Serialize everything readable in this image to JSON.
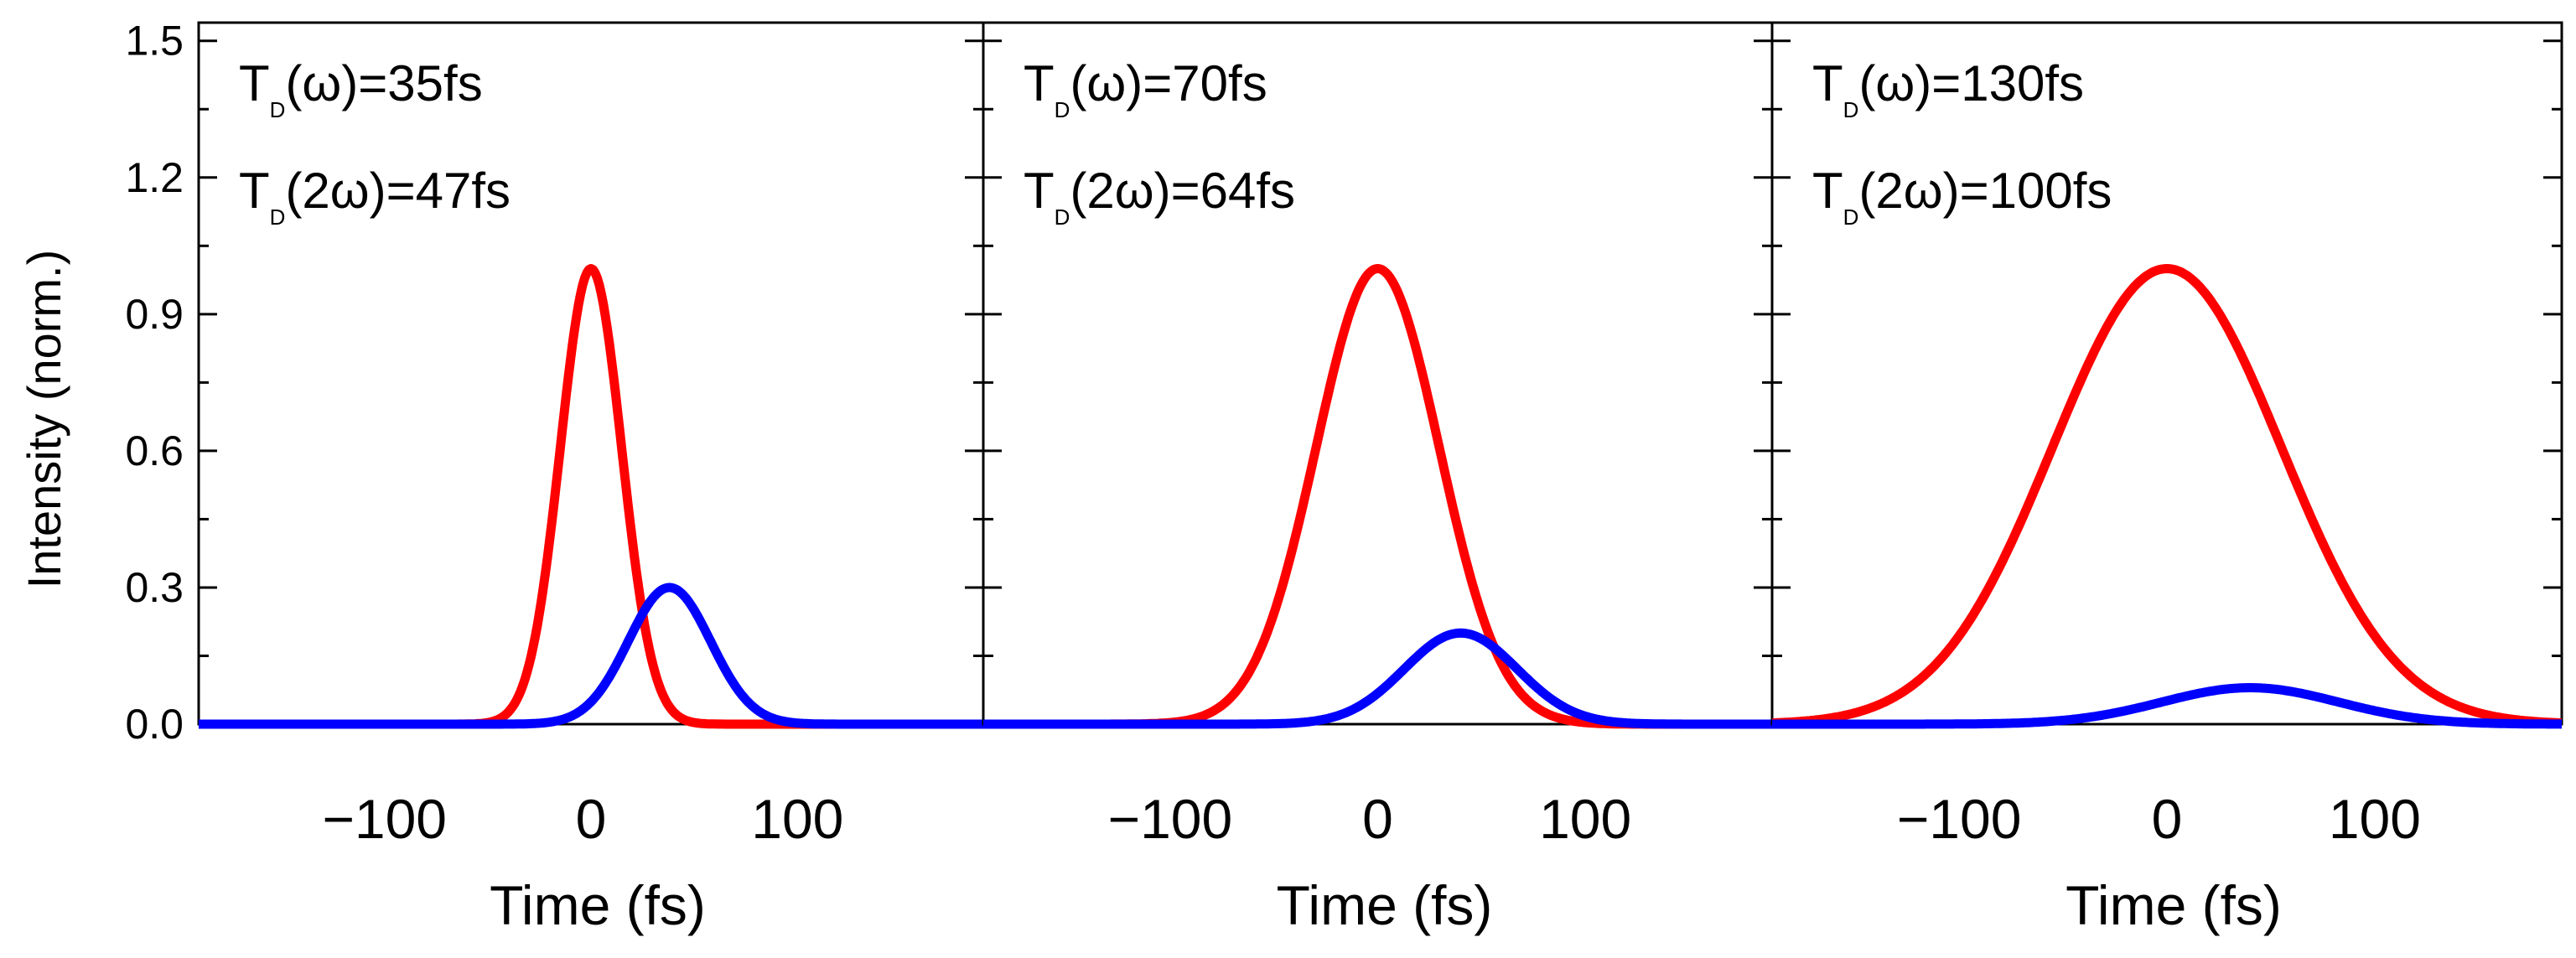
{
  "ylabel": "Intensity (norm.)",
  "colors": {
    "fundamental": "#ff0000",
    "second_harmonic": "#0000ff",
    "axes": "#000000"
  },
  "chart_data": [
    {
      "type": "line",
      "xlabel": "Time (fs)",
      "ylabel": "Intensity (norm.)",
      "xlim": [
        -190,
        190
      ],
      "ylim": [
        0,
        1.54
      ],
      "xticks": [
        -100,
        0,
        100
      ],
      "xtick_labels": [
        "−100",
        "0",
        "100"
      ],
      "yticks": [
        0.0,
        0.3,
        0.6,
        0.9,
        1.2,
        1.5
      ],
      "ytick_labels": [
        "0.0",
        "0.3",
        "0.6",
        "0.9",
        "1.2",
        "1.5"
      ],
      "annotations": [
        {
          "base": "T",
          "sub": "D",
          "rest": "(ω)=35fs"
        },
        {
          "base": "T",
          "sub": "D",
          "rest": "(2ω)=47fs"
        }
      ],
      "series": [
        {
          "name": "ω",
          "color": "#ff0000",
          "shape": "gaussian",
          "peak": 1.0,
          "center": 0,
          "fwhm": 35
        },
        {
          "name": "2ω",
          "color": "#0000ff",
          "shape": "gaussian",
          "peak": 0.3,
          "center": 38,
          "fwhm": 47
        }
      ]
    },
    {
      "type": "line",
      "xlabel": "Time (fs)",
      "xlim": [
        -190,
        190
      ],
      "ylim": [
        0,
        1.54
      ],
      "xticks": [
        -100,
        0,
        100
      ],
      "xtick_labels": [
        "−100",
        "0",
        "100"
      ],
      "yticks": [
        0.0,
        0.3,
        0.6,
        0.9,
        1.2,
        1.5
      ],
      "annotations": [
        {
          "base": "T",
          "sub": "D",
          "rest": "(ω)=70fs"
        },
        {
          "base": "T",
          "sub": "D",
          "rest": "(2ω)=64fs"
        }
      ],
      "series": [
        {
          "name": "ω",
          "color": "#ff0000",
          "shape": "gaussian",
          "peak": 1.0,
          "center": 0,
          "fwhm": 70
        },
        {
          "name": "2ω",
          "color": "#0000ff",
          "shape": "gaussian",
          "peak": 0.2,
          "center": 40,
          "fwhm": 64
        }
      ]
    },
    {
      "type": "line",
      "xlabel": "Time (fs)",
      "xlim": [
        -190,
        190
      ],
      "ylim": [
        0,
        1.54
      ],
      "xticks": [
        -100,
        0,
        100
      ],
      "xtick_labels": [
        "−100",
        "0",
        "100"
      ],
      "yticks": [
        0.0,
        0.3,
        0.6,
        0.9,
        1.2,
        1.5
      ],
      "annotations": [
        {
          "base": "T",
          "sub": "D",
          "rest": "(ω)=130fs"
        },
        {
          "base": "T",
          "sub": "D",
          "rest": "(2ω)=100fs"
        }
      ],
      "series": [
        {
          "name": "ω",
          "color": "#ff0000",
          "shape": "gaussian",
          "peak": 1.0,
          "center": 0,
          "fwhm": 130
        },
        {
          "name": "2ω",
          "color": "#0000ff",
          "shape": "gaussian",
          "peak": 0.08,
          "center": 40,
          "fwhm": 100
        }
      ]
    }
  ]
}
